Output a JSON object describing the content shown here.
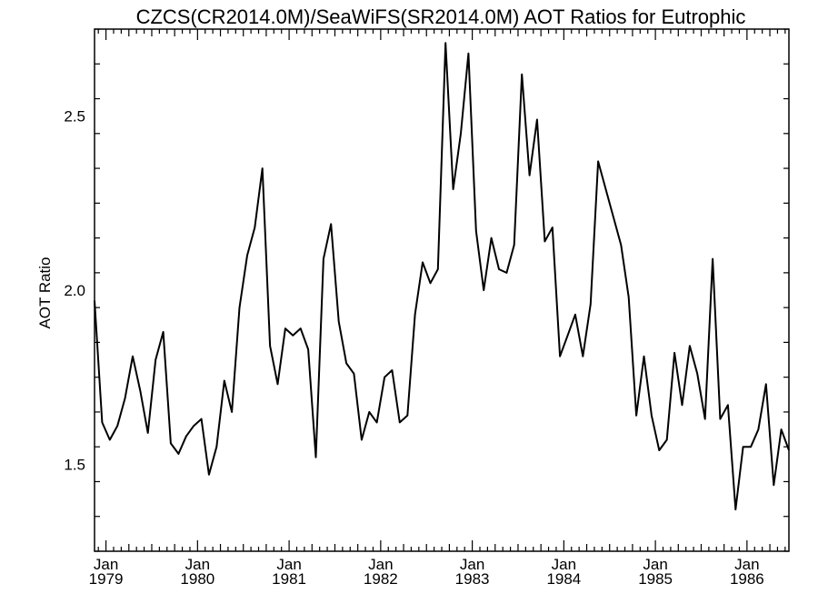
{
  "chart_data": {
    "type": "line",
    "title": "CZCS(CR2014.0M)/SeaWiFS(SR2014.0M)  AOT Ratios for Eutrophic",
    "xlabel": "",
    "ylabel": "AOT Ratio",
    "x_ticks": [
      {
        "month": "Jan",
        "year": "1979",
        "t": 1979.0
      },
      {
        "month": "Jan",
        "year": "1980",
        "t": 1980.0
      },
      {
        "month": "Jan",
        "year": "1981",
        "t": 1981.0
      },
      {
        "month": "Jan",
        "year": "1982",
        "t": 1982.0
      },
      {
        "month": "Jan",
        "year": "1983",
        "t": 1983.0
      },
      {
        "month": "Jan",
        "year": "1984",
        "t": 1984.0
      },
      {
        "month": "Jan",
        "year": "1985",
        "t": 1985.0
      },
      {
        "month": "Jan",
        "year": "1986",
        "t": 1986.0
      }
    ],
    "y_ticks": [
      {
        "label": "1.5",
        "value": 1.5
      },
      {
        "label": "2.0",
        "value": 2.0
      },
      {
        "label": "2.5",
        "value": 2.5
      }
    ],
    "xlim": [
      1978.875,
      1986.458
    ],
    "ylim": [
      1.25,
      2.75
    ],
    "grid": false,
    "x": [
      1978.875,
      1978.958,
      1979.042,
      1979.125,
      1979.208,
      1979.292,
      1979.375,
      1979.458,
      1979.542,
      1979.625,
      1979.708,
      1979.792,
      1979.875,
      1979.958,
      1980.042,
      1980.125,
      1980.208,
      1980.292,
      1980.375,
      1980.458,
      1980.542,
      1980.625,
      1980.708,
      1980.792,
      1980.875,
      1980.958,
      1981.042,
      1981.125,
      1981.208,
      1981.292,
      1981.375,
      1981.458,
      1981.542,
      1981.625,
      1981.708,
      1981.792,
      1981.875,
      1981.958,
      1982.042,
      1982.125,
      1982.208,
      1982.292,
      1982.375,
      1982.458,
      1982.542,
      1982.625,
      1982.708,
      1982.792,
      1982.875,
      1982.958,
      1983.042,
      1983.125,
      1983.208,
      1983.292,
      1983.375,
      1983.458,
      1983.542,
      1983.625,
      1983.708,
      1983.792,
      1983.875,
      1983.958,
      1984.042,
      1984.125,
      1984.208,
      1984.292,
      1984.375,
      1984.625,
      1984.708,
      1984.792,
      1984.875,
      1984.958,
      1985.042,
      1985.125,
      1985.208,
      1985.292,
      1985.375,
      1985.458,
      1985.542,
      1985.625,
      1985.708,
      1985.792,
      1985.875,
      1985.958,
      1986.042,
      1986.125,
      1986.208,
      1986.292,
      1986.375,
      1986.458
    ],
    "y": [
      1.97,
      1.62,
      1.57,
      1.61,
      1.69,
      1.81,
      1.71,
      1.59,
      1.8,
      1.88,
      1.56,
      1.53,
      1.58,
      1.61,
      1.63,
      1.47,
      1.55,
      1.74,
      1.65,
      1.95,
      2.1,
      2.18,
      2.35,
      1.84,
      1.73,
      1.89,
      1.87,
      1.89,
      1.83,
      1.52,
      2.09,
      2.19,
      1.91,
      1.79,
      1.76,
      1.57,
      1.65,
      1.62,
      1.75,
      1.77,
      1.62,
      1.64,
      1.93,
      2.08,
      2.02,
      2.06,
      2.71,
      2.29,
      2.45,
      2.68,
      2.17,
      2.0,
      2.15,
      2.06,
      2.05,
      2.13,
      2.62,
      2.33,
      2.49,
      2.14,
      2.18,
      1.81,
      1.87,
      1.93,
      1.81,
      1.96,
      2.37,
      2.13,
      1.98,
      1.64,
      1.81,
      1.64,
      1.54,
      1.57,
      1.82,
      1.67,
      1.84,
      1.76,
      1.63,
      2.09,
      1.63,
      1.67,
      1.37,
      1.55,
      1.55,
      1.6,
      1.73,
      1.44,
      1.6,
      1.54
    ]
  }
}
